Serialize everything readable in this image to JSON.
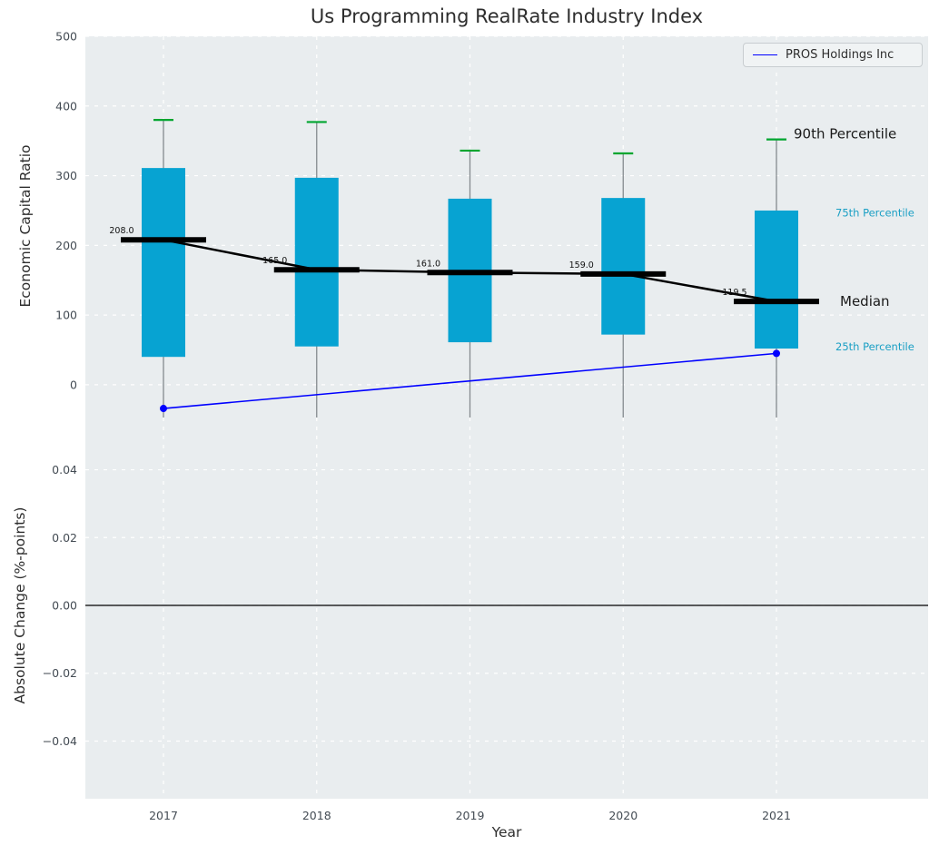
{
  "title": "Us Programming RealRate Industry Index",
  "legend": {
    "label": "PROS Holdings Inc"
  },
  "chart_data": {
    "type": "boxplot+line",
    "categories": [
      "2017",
      "2018",
      "2019",
      "2020",
      "2021"
    ],
    "xlabel": "Year",
    "top_panel": {
      "ylabel": "Economic Capital Ratio",
      "ylim": [
        -47,
        500
      ],
      "ytick_values": [
        0,
        100,
        200,
        300,
        400,
        500
      ],
      "ytick_labels": [
        "0",
        "100",
        "200",
        "300",
        "400",
        "500"
      ],
      "grid": true,
      "series": {
        "p90": [
          380,
          377,
          336,
          332,
          352
        ],
        "p75": [
          311,
          297,
          267,
          268,
          250
        ],
        "median": [
          208.0,
          165.0,
          161.0,
          159.0,
          119.5
        ],
        "p25": [
          40,
          55,
          61,
          72,
          52
        ]
      },
      "median_labels": [
        "208.0",
        "165.0",
        "161.0",
        "159.0",
        "119.5"
      ],
      "company_line": {
        "name": "PROS Holdings Inc",
        "x": [
          "2017",
          "2021"
        ],
        "y": [
          -34,
          45
        ]
      },
      "annotations": [
        {
          "text": "90th Percentile",
          "value": 360,
          "color": "#1a1a1a",
          "size": 15,
          "dx": 19
        },
        {
          "text": "75th Percentile",
          "value": 248,
          "color": "#1a9fc4",
          "size": 11.5,
          "dx": 65
        },
        {
          "text": "Median",
          "value": 119.5,
          "color": "#1a1a1a",
          "size": 15,
          "dx": 70
        },
        {
          "text": "25th Percentile",
          "value": 56,
          "color": "#1a9fc4",
          "size": 11.5,
          "dx": 65
        }
      ]
    },
    "bottom_panel": {
      "ylabel": "Absolute Change (%-points)",
      "ylim": [
        -0.057,
        0.0554
      ],
      "ytick_values": [
        0.04,
        0.02,
        0.0,
        -0.02,
        -0.04
      ],
      "ytick_labels": [
        "0.04",
        "0.02",
        "0.00",
        "−0.02",
        "−0.04"
      ],
      "zero_line": true,
      "grid": true
    }
  },
  "colors": {
    "panel_bg": "#e9edef",
    "grid": "#ffffff",
    "bar": "#07a3d2",
    "whisker": "#848a8e",
    "cap": "#00a52f",
    "median": "#000000",
    "company_line": "#0000ff",
    "zero_line": "#000000",
    "tick_text": "#444c54",
    "title_text": "#2d2d2d"
  }
}
